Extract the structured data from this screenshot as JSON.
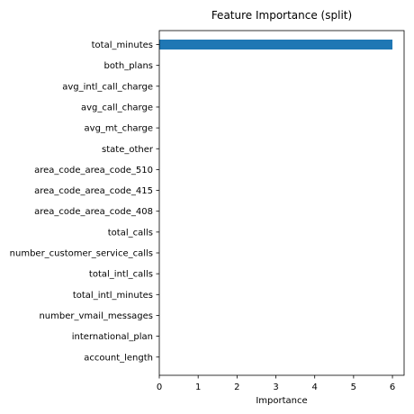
{
  "chart_data": {
    "type": "bar",
    "orientation": "horizontal",
    "title": "Feature Importance (split)",
    "xlabel": "Importance",
    "ylabel": "",
    "xlim": [
      0,
      6.3
    ],
    "xticks": [
      0,
      1,
      2,
      3,
      4,
      5,
      6
    ],
    "grid": false,
    "legend": "none",
    "bar_color": "#1f77b4",
    "categories": [
      "total_minutes",
      "both_plans",
      "avg_intl_call_charge",
      "avg_call_charge",
      "avg_mt_charge",
      "state_other",
      "area_code_area_code_510",
      "area_code_area_code_415",
      "area_code_area_code_408",
      "total_calls",
      "number_customer_service_calls",
      "total_intl_calls",
      "total_intl_minutes",
      "number_vmail_messages",
      "international_plan",
      "account_length"
    ],
    "values": [
      6,
      0,
      0,
      0,
      0,
      0,
      0,
      0,
      0,
      0,
      0,
      0,
      0,
      0,
      0,
      0
    ]
  }
}
